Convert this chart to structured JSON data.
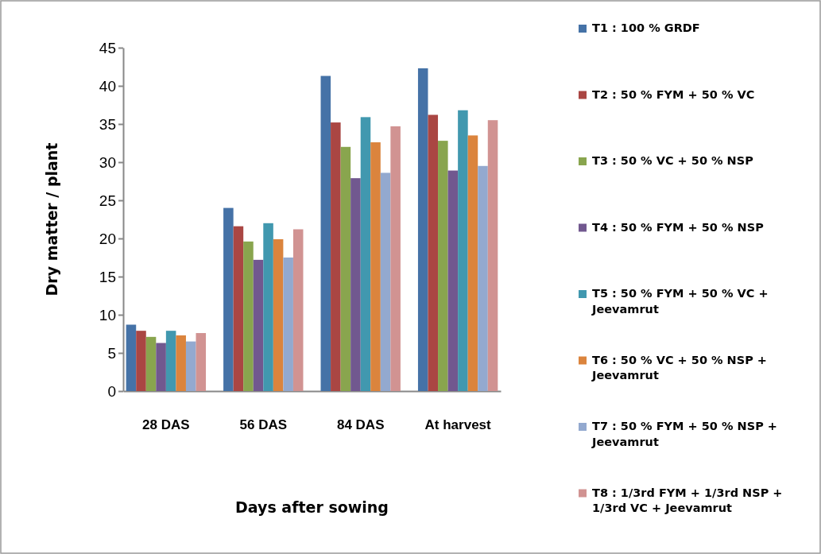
{
  "chart_data": {
    "type": "bar",
    "xlabel": "Days after sowing",
    "ylabel": "Dry matter / plant",
    "categories": [
      "28 DAS",
      "56 DAS",
      "84 DAS",
      "At harvest"
    ],
    "ylim": [
      0,
      45
    ],
    "yticks": [
      0,
      5,
      10,
      15,
      20,
      25,
      30,
      35,
      40,
      45
    ],
    "grid": false,
    "legend": "right",
    "series": [
      {
        "name": "T1 : 100 % GRDF",
        "color": "#4572a7",
        "values": [
          8.7,
          24.0,
          41.3,
          42.3
        ]
      },
      {
        "name": "T2 : 50 % FYM + 50 % VC",
        "color": "#aa4643",
        "values": [
          7.9,
          21.6,
          35.2,
          36.2
        ]
      },
      {
        "name": "T3 : 50 % VC + 50 % NSP",
        "color": "#89a54e",
        "values": [
          7.1,
          19.6,
          32.0,
          32.8
        ]
      },
      {
        "name": "T4 : 50 % FYM + 50 % NSP",
        "color": "#71588f",
        "values": [
          6.3,
          17.2,
          27.9,
          28.9
        ]
      },
      {
        "name": "T5 : 50 % FYM + 50 % VC + Jeevamrut",
        "color": "#4198af",
        "values": [
          7.9,
          22.0,
          35.9,
          36.8
        ]
      },
      {
        "name": "T6 : 50 % VC + 50 % NSP + Jeevamrut",
        "color": "#db843d",
        "values": [
          7.3,
          19.9,
          32.6,
          33.5
        ]
      },
      {
        "name": "T7 : 50 % FYM + 50 % NSP + Jeevamrut",
        "color": "#93a9cf",
        "values": [
          6.5,
          17.5,
          28.6,
          29.5
        ]
      },
      {
        "name": "T8 : 1/3rd  FYM + 1/3rd  NSP  + 1/3rd  VC + Jeevamrut",
        "color": "#d19392",
        "values": [
          7.6,
          21.2,
          34.7,
          35.5
        ]
      }
    ]
  }
}
